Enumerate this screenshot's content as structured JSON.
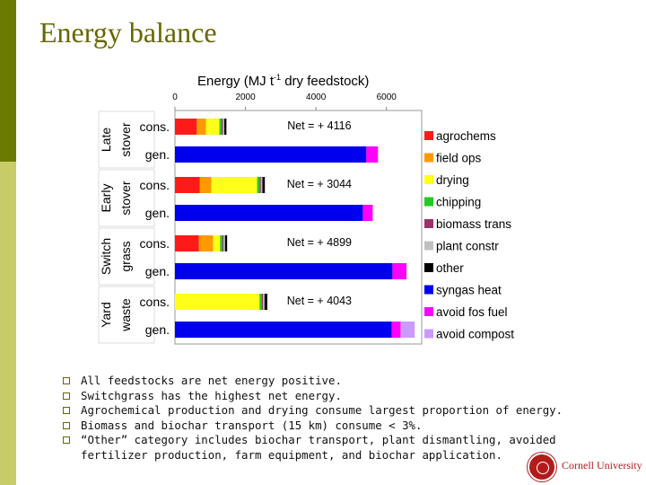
{
  "slide": {
    "title": "Energy balance",
    "bullets": [
      "All feedstocks are net energy positive.",
      "Switchgrass has the highest net energy.",
      "Agrochemical production and drying consume largest proportion of energy.",
      "Biomass and biochar transport (15 km) consume < 3%.",
      "“Other” category includes biochar transport, plant dismantling, avoided fertilizer production, farm equipment, and biochar application."
    ],
    "logo_text": "Cornell University"
  },
  "chart_data": {
    "type": "bar",
    "orientation": "horizontal",
    "stacked": true,
    "title": "Energy (MJ t",
    "title_sup": "-1",
    "title_rest": " dry feedstock)",
    "xlim": [
      0,
      7000
    ],
    "x_ticks": [
      0,
      2000,
      4000,
      6000
    ],
    "x_tick_labels": [
      "0",
      "2000",
      "4000",
      "6000"
    ],
    "legend_position": "right",
    "colors": {
      "agrochems": "#ff1a1a",
      "field ops": "#ff9900",
      "drying": "#ffff1a",
      "chipping": "#22cc22",
      "biomass trans": "#993366",
      "plant constr": "#c0c0c0",
      "other": "#000000",
      "syngas heat": "#0000ee",
      "avoid fos fuel": "#ff00ff",
      "avoid compost": "#cc99ff"
    },
    "legend": [
      "agrochems",
      "field ops",
      "drying",
      "chipping",
      "biomass trans",
      "plant constr",
      "other",
      "syngas heat",
      "avoid fos fuel",
      "avoid compost"
    ],
    "groups": [
      {
        "label_line1": "Late",
        "label_line2": "stover",
        "net_label": "Net = + 4116",
        "bars": [
          {
            "label": "cons.",
            "segments": [
              {
                "series": "agrochems",
                "value": 620
              },
              {
                "series": "field ops",
                "value": 260
              },
              {
                "series": "drying",
                "value": 380
              },
              {
                "series": "chipping",
                "value": 60
              },
              {
                "series": "biomass trans",
                "value": 40
              },
              {
                "series": "plant constr",
                "value": 40
              },
              {
                "series": "other",
                "value": 60
              }
            ]
          },
          {
            "label": "gen.",
            "segments": [
              {
                "series": "syngas heat",
                "value": 5430
              },
              {
                "series": "avoid fos fuel",
                "value": 330
              }
            ]
          }
        ]
      },
      {
        "label_line1": "Early",
        "label_line2": "stover",
        "net_label": "Net = + 3044",
        "bars": [
          {
            "label": "cons.",
            "segments": [
              {
                "series": "agrochems",
                "value": 700
              },
              {
                "series": "field ops",
                "value": 330
              },
              {
                "series": "drying",
                "value": 1300
              },
              {
                "series": "chipping",
                "value": 70
              },
              {
                "series": "biomass trans",
                "value": 40
              },
              {
                "series": "plant constr",
                "value": 40
              },
              {
                "series": "other",
                "value": 70
              }
            ]
          },
          {
            "label": "gen.",
            "segments": [
              {
                "series": "syngas heat",
                "value": 5330
              },
              {
                "series": "avoid fos fuel",
                "value": 280
              }
            ]
          }
        ]
      },
      {
        "label_line1": "Switch",
        "label_line2": "grass",
        "net_label": "Net = + 4899",
        "bars": [
          {
            "label": "cons.",
            "segments": [
              {
                "series": "agrochems",
                "value": 680
              },
              {
                "series": "field ops",
                "value": 400
              },
              {
                "series": "drying",
                "value": 200
              },
              {
                "series": "chipping",
                "value": 60
              },
              {
                "series": "biomass trans",
                "value": 40
              },
              {
                "series": "plant constr",
                "value": 40
              },
              {
                "series": "other",
                "value": 60
              }
            ]
          },
          {
            "label": "gen.",
            "segments": [
              {
                "series": "syngas heat",
                "value": 6170
              },
              {
                "series": "avoid fos fuel",
                "value": 400
              }
            ]
          }
        ]
      },
      {
        "label_line1": "Yard",
        "label_line2": "waste",
        "net_label": "Net = + 4043",
        "bars": [
          {
            "label": "cons.",
            "segments": [
              {
                "series": "drying",
                "value": 2400
              },
              {
                "series": "chipping",
                "value": 60
              },
              {
                "series": "biomass trans",
                "value": 40
              },
              {
                "series": "plant constr",
                "value": 40
              },
              {
                "series": "other",
                "value": 80
              }
            ]
          },
          {
            "label": "gen.",
            "segments": [
              {
                "series": "syngas heat",
                "value": 6150
              },
              {
                "series": "avoid fos fuel",
                "value": 250
              },
              {
                "series": "avoid compost",
                "value": 400
              }
            ]
          }
        ]
      }
    ]
  }
}
